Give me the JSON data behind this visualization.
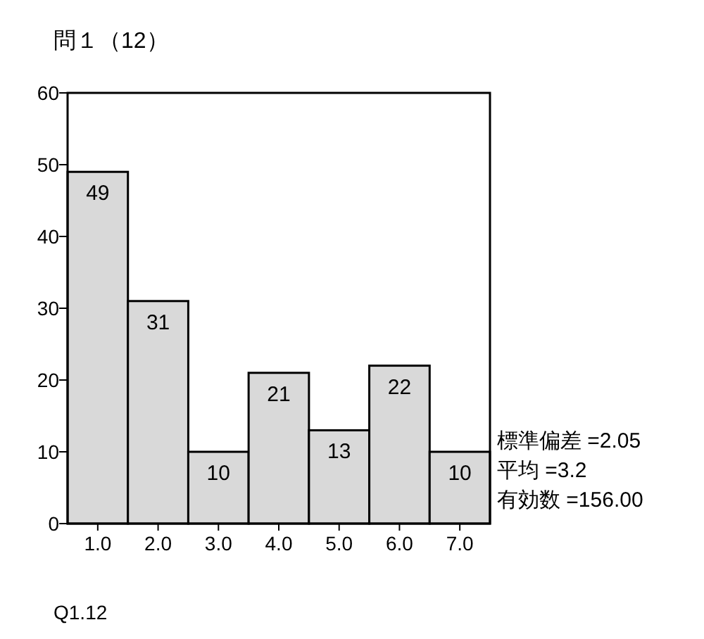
{
  "chart_data": {
    "type": "bar",
    "title": "問１（12）",
    "categories": [
      "1.0",
      "2.0",
      "3.0",
      "4.0",
      "5.0",
      "6.0",
      "7.0"
    ],
    "values": [
      49,
      31,
      10,
      21,
      13,
      22,
      10
    ],
    "color": "#d9d9d9",
    "ylim": [
      0,
      60
    ],
    "yticks": [
      0,
      10,
      20,
      30,
      40,
      50,
      60
    ],
    "data_labels": true,
    "grid": false,
    "annotations": [
      "標準偏差 =2.05",
      "平均 =3.2",
      "有効数 =156.00",
      "Q1.12"
    ]
  }
}
